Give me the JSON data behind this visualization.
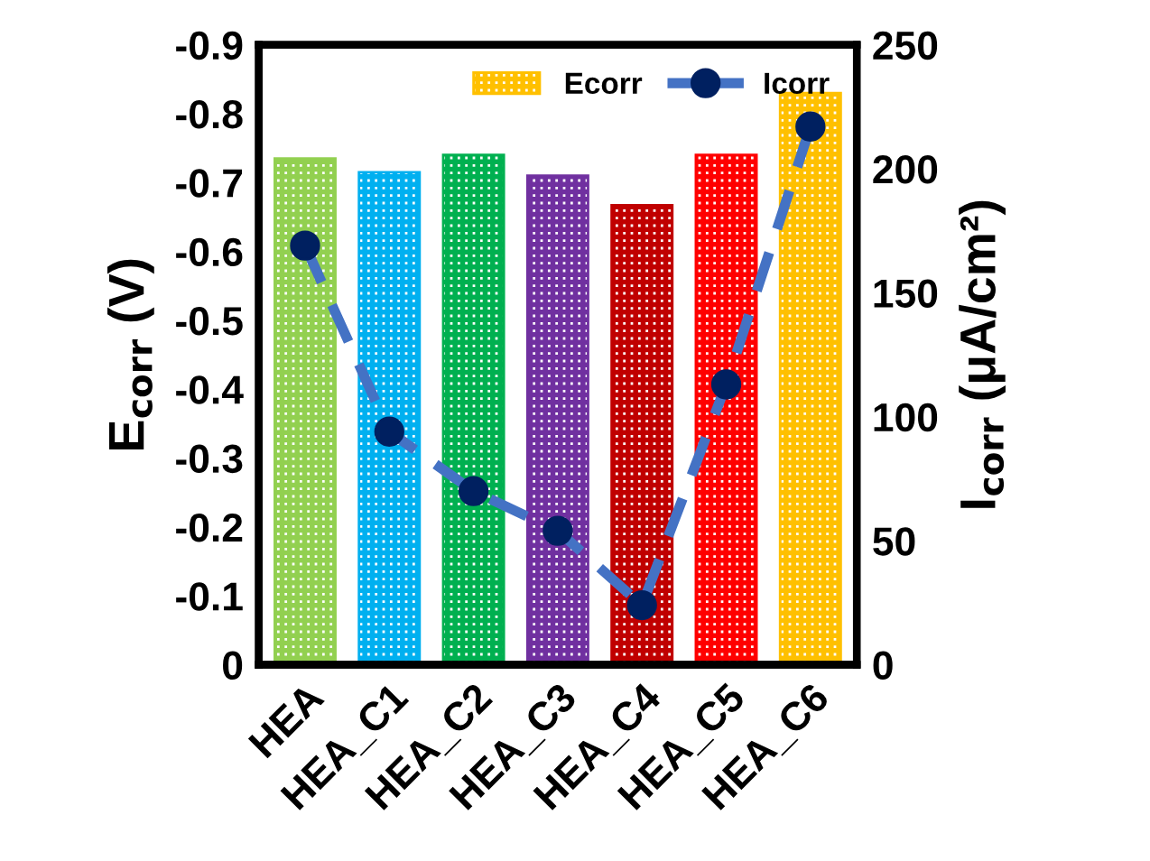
{
  "chart_data": {
    "type": "bar",
    "categories": [
      "HEA",
      "HEA_C1",
      "HEA_C2",
      "HEA_C3",
      "HEA_C4",
      "HEA_C5",
      "HEA_C6"
    ],
    "ylabel": "E$_{corr}$ (V)",
    "y2label": "I$_{corr}$ (μA/cm²)",
    "ylim": [
      0,
      -0.9
    ],
    "yticks": [
      0,
      -0.1,
      -0.2,
      -0.3,
      -0.4,
      -0.5,
      -0.6,
      -0.7,
      -0.8,
      -0.9
    ],
    "y2lim": [
      0,
      250
    ],
    "y2ticks": [
      0,
      50,
      100,
      150,
      200,
      250
    ],
    "legend": "top right",
    "grid": false,
    "series": [
      {
        "name": "Ecorr",
        "colors": [
          "#92d050",
          "#00b0f0",
          "#00b050",
          "#7030a0",
          "#c00000",
          "#ff0000",
          "#ffc000"
        ],
        "color": "#ffc000",
        "values": [
          -0.735,
          -0.715,
          -0.74,
          -0.71,
          -0.667,
          -0.74,
          -0.83
        ]
      },
      {
        "name": "Icorr",
        "type": "line",
        "axis": "y2",
        "color": "#4472c4",
        "marker": "circle",
        "line_style": "dashed",
        "values": [
          169,
          94,
          70,
          54,
          24,
          113,
          217
        ]
      }
    ]
  }
}
